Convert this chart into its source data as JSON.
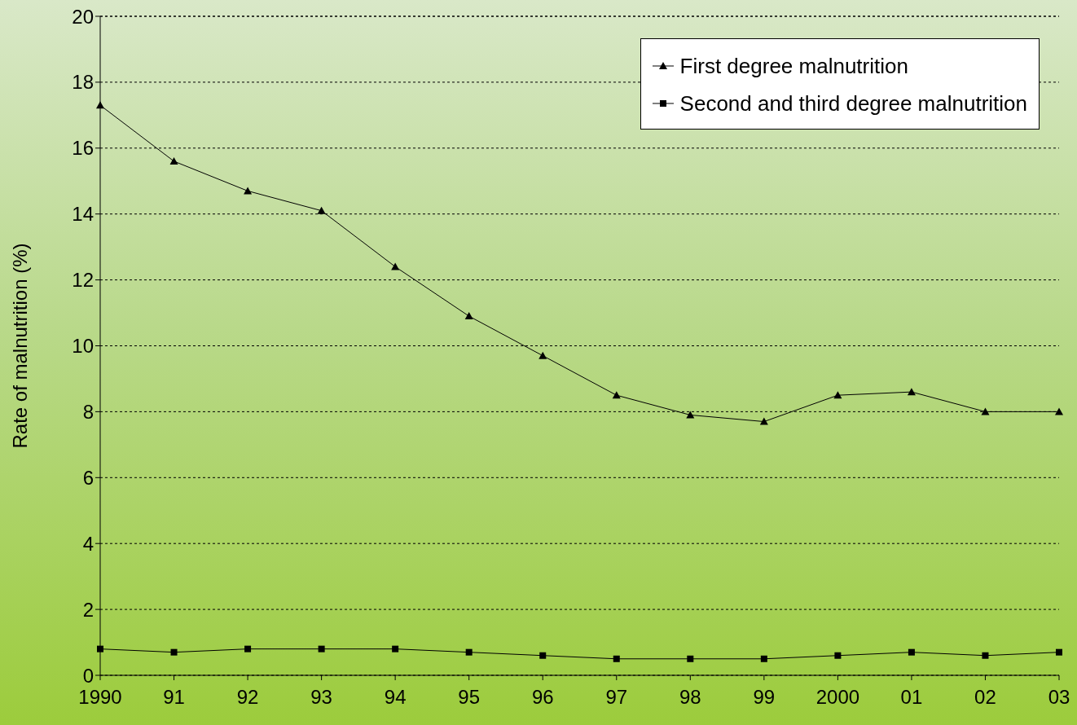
{
  "chart_data": {
    "type": "line",
    "ylabel": "Rate of malnutrition (%)",
    "categories": [
      "1990",
      "91",
      "92",
      "93",
      "94",
      "95",
      "96",
      "97",
      "98",
      "99",
      "2000",
      "01",
      "02",
      "03"
    ],
    "series": [
      {
        "name": "First degree malnutrition",
        "color": "#000000",
        "marker": "triangle",
        "values": [
          17.3,
          15.6,
          14.7,
          14.1,
          12.4,
          10.9,
          9.7,
          8.5,
          7.9,
          7.7,
          8.5,
          8.6,
          8.0,
          8.0
        ]
      },
      {
        "name": "Second and third degree malnutrition",
        "color": "#000000",
        "marker": "square",
        "values": [
          0.8,
          0.7,
          0.8,
          0.8,
          0.8,
          0.7,
          0.6,
          0.5,
          0.5,
          0.5,
          0.6,
          0.7,
          0.6,
          0.7
        ]
      }
    ],
    "ylim": [
      0,
      20
    ],
    "yticks": [
      0,
      2,
      4,
      6,
      8,
      10,
      12,
      14,
      16,
      18,
      20
    ],
    "grid": "y",
    "legend": "top right",
    "line_style": "solid"
  }
}
